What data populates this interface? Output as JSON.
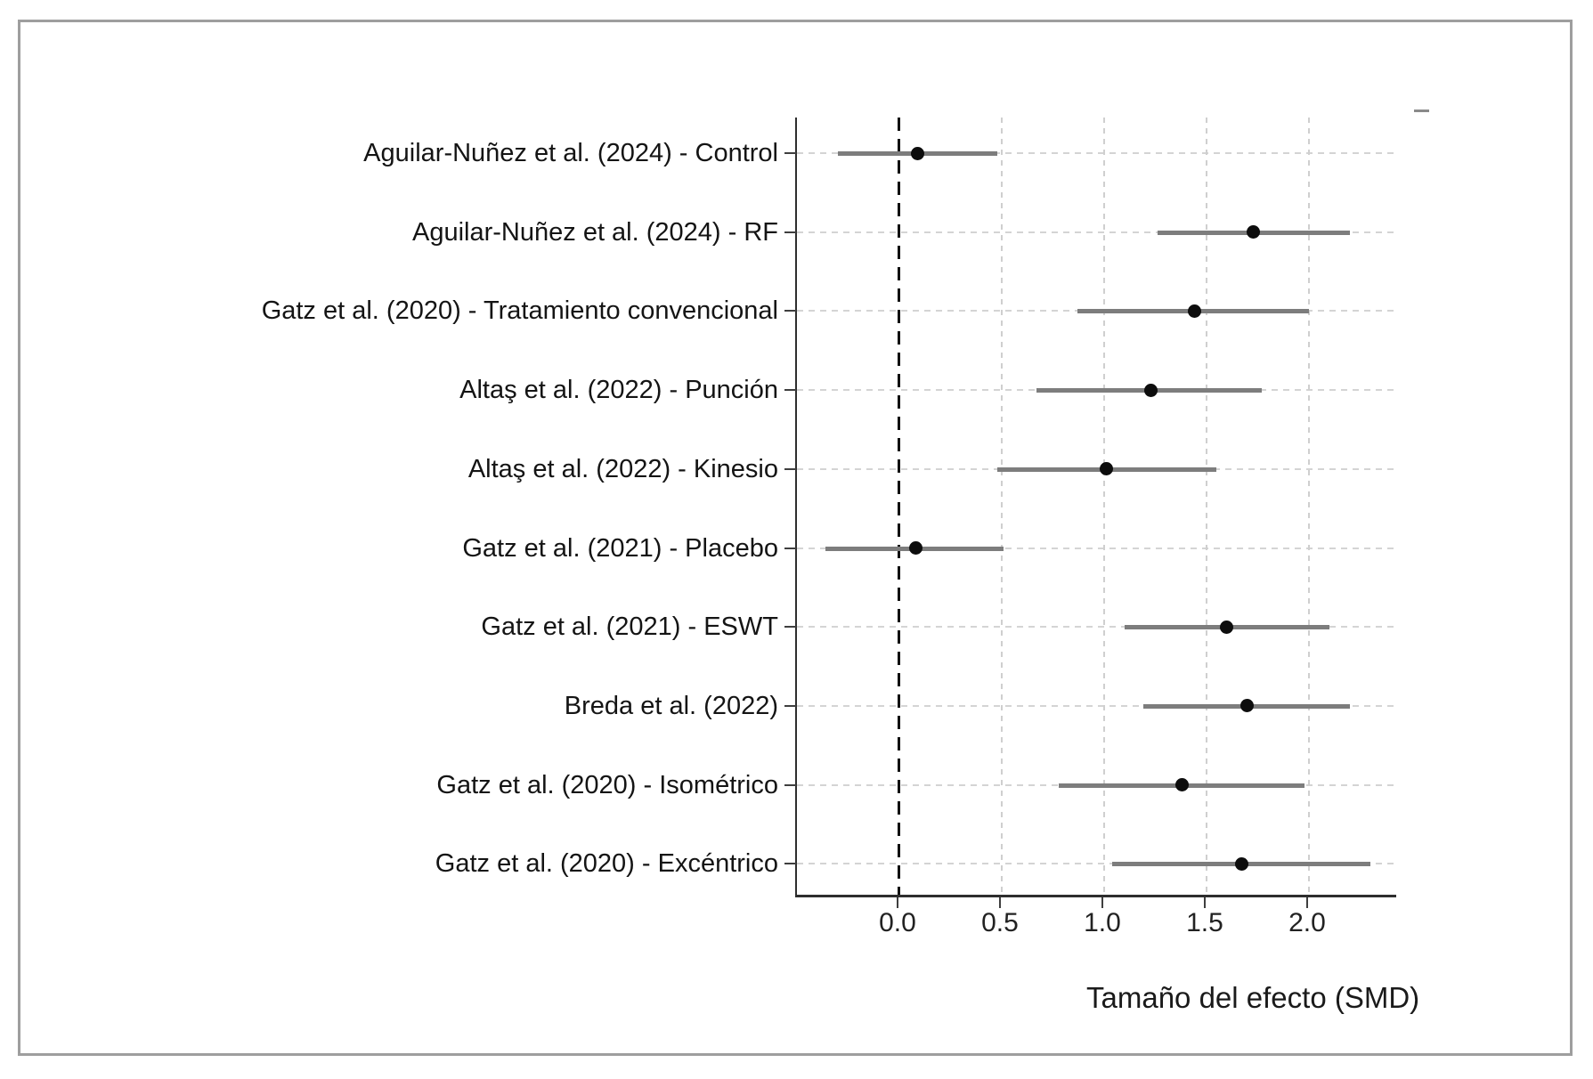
{
  "figure": {
    "background": "#ffffff",
    "frame_color": "#9e9e9e"
  },
  "chart_data": {
    "type": "scatter",
    "variant": "forest-plot",
    "title": "",
    "xlabel": "Tamaño del efecto (SMD)",
    "x_ticks": [
      0.0,
      0.5,
      1.0,
      1.5,
      2.0
    ],
    "x_tick_labels": [
      "0.0",
      "0.5",
      "1.0",
      "1.5",
      "2.0"
    ],
    "xlim": [
      -0.5,
      2.435
    ],
    "reference_line_x": 0.0,
    "grid": true,
    "legend_position": "none",
    "studies": [
      {
        "label": "Aguilar-Nuñez et al. (2024) - Control",
        "estimate": 0.09,
        "ci_low": -0.3,
        "ci_high": 0.48
      },
      {
        "label": "Aguilar-Nuñez et al. (2024) - RF",
        "estimate": 1.73,
        "ci_low": 1.26,
        "ci_high": 2.2
      },
      {
        "label": "Gatz et al. (2020) - Tratamiento convencional",
        "estimate": 1.44,
        "ci_low": 0.87,
        "ci_high": 2.0
      },
      {
        "label": "Altaş et al. (2022) - Punción",
        "estimate": 1.23,
        "ci_low": 0.67,
        "ci_high": 1.77
      },
      {
        "label": "Altaş et al. (2022) - Kinesio",
        "estimate": 1.01,
        "ci_low": 0.48,
        "ci_high": 1.55
      },
      {
        "label": "Gatz et al. (2021) - Placebo",
        "estimate": 0.08,
        "ci_low": -0.36,
        "ci_high": 0.51
      },
      {
        "label": "Gatz et al. (2021) - ESWT",
        "estimate": 1.6,
        "ci_low": 1.1,
        "ci_high": 2.1
      },
      {
        "label": "Breda et al. (2022)",
        "estimate": 1.7,
        "ci_low": 1.19,
        "ci_high": 2.2
      },
      {
        "label": "Gatz et al. (2020) - Isométrico",
        "estimate": 1.38,
        "ci_low": 0.78,
        "ci_high": 1.98
      },
      {
        "label": "Gatz et al. (2020) - Excéntrico",
        "estimate": 1.67,
        "ci_low": 1.04,
        "ci_high": 2.3
      }
    ],
    "colors": {
      "point": "#0d0d0d",
      "ci_line": "#7d7d7d",
      "zero_line": "#111111",
      "gridline": "#cfcfcf",
      "spine": "#2e2e2e",
      "text": "#1a1a1a"
    }
  }
}
